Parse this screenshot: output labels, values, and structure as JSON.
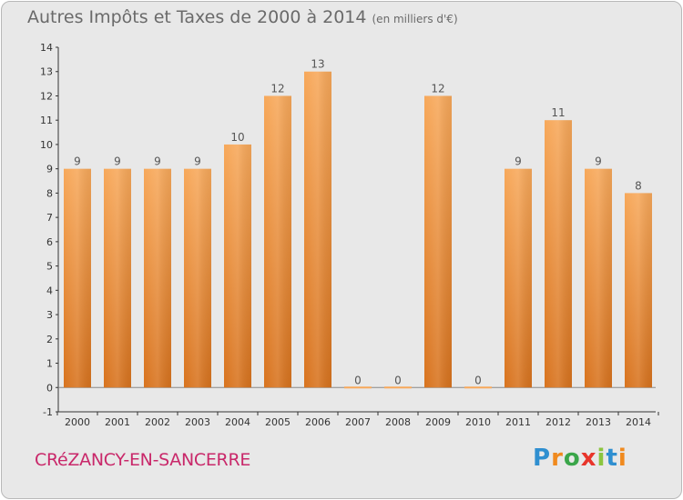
{
  "header": {
    "title": "Autres Impôts et Taxes de 2000 à 2014",
    "unit": "(en milliers d'€)"
  },
  "footer": {
    "commune": "CRéZANCY-EN-SANCERRE",
    "logo": "Proxiti"
  },
  "colors": {
    "bar_top": "#f7a85a",
    "bar_bottom": "#d8731e",
    "background": "#e8e8e8",
    "commune_text": "#c9286a"
  },
  "chart_data": {
    "type": "bar",
    "title": "Autres Impôts et Taxes de 2000 à 2014",
    "subtitle": "(en milliers d'€)",
    "categories": [
      "2000",
      "2001",
      "2002",
      "2003",
      "2004",
      "2005",
      "2006",
      "2007",
      "2008",
      "2009",
      "2010",
      "2011",
      "2012",
      "2013",
      "2014"
    ],
    "values": [
      9,
      9,
      9,
      9,
      10,
      12,
      13,
      0,
      0,
      12,
      0,
      9,
      11,
      9,
      8
    ],
    "data_labels": [
      "9",
      "9",
      "9",
      "9",
      "10",
      "12",
      "13",
      "0",
      "0",
      "12",
      "0",
      "9",
      "11",
      "9",
      "8"
    ],
    "y_ticks": [
      "-1",
      "0",
      "1",
      "2",
      "3",
      "4",
      "5",
      "6",
      "7",
      "8",
      "9",
      "10",
      "11",
      "12",
      "13",
      "14"
    ],
    "ylim": [
      -1,
      14
    ],
    "grid": false,
    "legend": "none"
  }
}
